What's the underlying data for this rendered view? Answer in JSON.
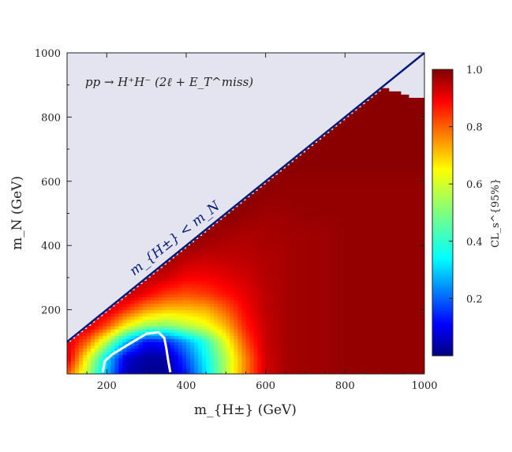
{
  "chart_data": {
    "type": "heatmap",
    "title": "",
    "xlabel": "m_{H±} (GeV)",
    "ylabel": "m_N (GeV)",
    "xlim": [
      100,
      1000
    ],
    "ylim": [
      0,
      1000
    ],
    "x_ticks": [
      200,
      400,
      600,
      800,
      1000
    ],
    "y_ticks": [
      200,
      400,
      600,
      800,
      1000
    ],
    "x_tick_labels": [
      "200",
      "400",
      "600",
      "800",
      "1000"
    ],
    "y_tick_labels": [
      "200",
      "400",
      "600",
      "800",
      "1000"
    ],
    "process_label": "pp → H⁺H⁻ (2ℓ + E_T^miss)",
    "diagonal_label": "m_{H±} < m_N",
    "colorbar": {
      "label": "CL_s^{95%}",
      "range": [
        0.0,
        1.0
      ],
      "ticks": [
        0.2,
        0.4,
        0.6,
        0.8,
        1.0
      ],
      "tick_labels": [
        "0.2",
        "0.4",
        "0.6",
        "0.8",
        "1.0"
      ],
      "colormap": "jet"
    },
    "grid": false,
    "excluded_region": {
      "condition": "m_H± < m_N",
      "color": "#e4e4f1"
    },
    "diagonal_color": "#001a7a",
    "contour_color": "#ffffff",
    "contour_level": 0.05,
    "contour_points": [
      [
        190,
        5
      ],
      [
        195,
        40
      ],
      [
        215,
        62
      ],
      [
        255,
        92
      ],
      [
        300,
        125
      ],
      [
        330,
        130
      ],
      [
        345,
        112
      ],
      [
        350,
        80
      ],
      [
        355,
        40
      ],
      [
        360,
        5
      ]
    ],
    "upper_cutoff": [
      [
        870,
        885
      ],
      [
        890,
        890
      ],
      [
        910,
        885
      ],
      [
        930,
        878
      ],
      [
        950,
        870
      ],
      [
        970,
        862
      ],
      [
        990,
        858
      ],
      [
        1000,
        856
      ]
    ],
    "cls_grid_x": [
      100,
      150,
      200,
      250,
      300,
      350,
      400,
      450,
      500,
      550,
      600,
      650,
      700,
      750,
      800,
      850,
      900,
      950,
      1000
    ],
    "cls_grid_y": [
      0,
      50,
      100,
      150,
      200,
      250,
      300,
      350,
      400,
      450,
      500,
      550,
      600,
      650,
      700,
      750,
      800,
      850,
      900
    ],
    "cls_values": [
      [
        0.8,
        0.55,
        0.3,
        0.05,
        0.02,
        0.02,
        0.15,
        0.35,
        0.55,
        0.75,
        0.92,
        0.96,
        0.97,
        0.97,
        0.98,
        0.98,
        0.98,
        0.98,
        0.98
      ],
      [
        0.92,
        0.62,
        0.35,
        0.08,
        0.03,
        0.03,
        0.2,
        0.38,
        0.55,
        0.75,
        0.92,
        0.96,
        0.97,
        0.97,
        0.98,
        0.98,
        0.98,
        0.98,
        0.98
      ],
      [
        0.92,
        0.78,
        0.55,
        0.3,
        0.12,
        0.15,
        0.28,
        0.42,
        0.6,
        0.8,
        0.93,
        0.96,
        0.97,
        0.97,
        0.98,
        0.98,
        0.98,
        0.98,
        0.98
      ],
      [
        null,
        0.93,
        0.8,
        0.62,
        0.52,
        0.5,
        0.55,
        0.6,
        0.7,
        0.85,
        0.93,
        0.96,
        0.97,
        0.97,
        0.98,
        0.98,
        0.98,
        0.98,
        0.98
      ],
      [
        null,
        null,
        0.93,
        0.82,
        0.72,
        0.68,
        0.68,
        0.7,
        0.78,
        0.88,
        0.94,
        0.96,
        0.97,
        0.97,
        0.98,
        0.98,
        0.98,
        0.98,
        0.98
      ],
      [
        null,
        null,
        null,
        0.95,
        0.88,
        0.82,
        0.8,
        0.82,
        0.86,
        0.9,
        0.94,
        0.96,
        0.97,
        0.97,
        0.98,
        0.98,
        0.98,
        0.98,
        0.98
      ],
      [
        null,
        null,
        null,
        null,
        0.95,
        0.92,
        0.88,
        0.88,
        0.9,
        0.92,
        0.95,
        0.96,
        0.97,
        0.97,
        0.98,
        0.98,
        0.98,
        0.98,
        0.98
      ],
      [
        null,
        null,
        null,
        null,
        null,
        0.97,
        0.93,
        0.92,
        0.93,
        0.94,
        0.95,
        0.96,
        0.97,
        0.97,
        0.98,
        0.98,
        0.98,
        0.98,
        0.98
      ],
      [
        null,
        null,
        null,
        null,
        null,
        null,
        0.98,
        0.96,
        0.95,
        0.95,
        0.96,
        0.96,
        0.97,
        0.97,
        0.98,
        0.98,
        0.98,
        0.98,
        0.98
      ],
      [
        null,
        null,
        null,
        null,
        null,
        null,
        null,
        0.98,
        0.97,
        0.96,
        0.96,
        0.97,
        0.97,
        0.97,
        0.98,
        0.98,
        0.98,
        0.98,
        0.98
      ],
      [
        null,
        null,
        null,
        null,
        null,
        null,
        null,
        null,
        0.99,
        0.98,
        0.97,
        0.97,
        0.98,
        0.98,
        0.98,
        0.98,
        0.98,
        0.98,
        0.98
      ],
      [
        null,
        null,
        null,
        null,
        null,
        null,
        null,
        null,
        null,
        0.99,
        0.98,
        0.98,
        0.98,
        0.98,
        0.98,
        0.98,
        0.98,
        0.98,
        0.98
      ],
      [
        null,
        null,
        null,
        null,
        null,
        null,
        null,
        null,
        null,
        null,
        0.99,
        0.98,
        0.98,
        0.98,
        0.98,
        0.98,
        0.98,
        0.98,
        0.98
      ],
      [
        null,
        null,
        null,
        null,
        null,
        null,
        null,
        null,
        null,
        null,
        null,
        0.99,
        0.99,
        0.99,
        0.99,
        0.99,
        0.99,
        0.99,
        0.99
      ],
      [
        null,
        null,
        null,
        null,
        null,
        null,
        null,
        null,
        null,
        null,
        null,
        null,
        0.99,
        0.99,
        0.99,
        0.99,
        0.99,
        0.99,
        0.99
      ],
      [
        null,
        null,
        null,
        null,
        null,
        null,
        null,
        null,
        null,
        null,
        null,
        null,
        null,
        0.99,
        0.99,
        0.99,
        0.99,
        0.99,
        0.99
      ],
      [
        null,
        null,
        null,
        null,
        null,
        null,
        null,
        null,
        null,
        null,
        null,
        null,
        null,
        null,
        0.99,
        0.99,
        0.99,
        0.99,
        0.99
      ],
      [
        null,
        null,
        null,
        null,
        null,
        null,
        null,
        null,
        null,
        null,
        null,
        null,
        null,
        null,
        null,
        0.99,
        0.99,
        0.99,
        0.99
      ],
      [
        null,
        null,
        null,
        null,
        null,
        null,
        null,
        null,
        null,
        null,
        null,
        null,
        null,
        null,
        null,
        null,
        null,
        0.99,
        0.99
      ]
    ]
  }
}
